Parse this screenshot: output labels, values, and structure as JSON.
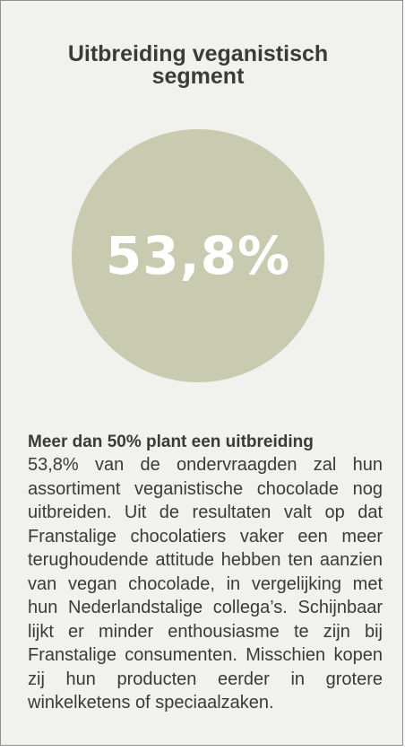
{
  "title_line1": "Uitbreiding veganistisch",
  "title_line2": "segment",
  "percentage": "53,8%",
  "subheading": "Meer dan 50% plant een uitbreiding",
  "paragraph": "53,8% van de ondervraagden zal hun assortiment veganistische chocolade nog uitbreiden. Uit de resultaten valt op dat Franstalige chocolatiers vaker een meer terughoudende attitude hebben ten aanzien van vegan chocolade, in verge­lijking met hun Nederlandstalige collega’s. Schijnbaar lijkt er minder enthousiasme te zijn bij Franstalige consu­menten. Misschien kopen zij hun producten eerder in grotere winkelketens of speciaalzaken.",
  "colors": {
    "background": "#f1f1ee",
    "circle": "#c8cbaf",
    "text": "#3a3a3a",
    "border": "#8e8e8e"
  }
}
